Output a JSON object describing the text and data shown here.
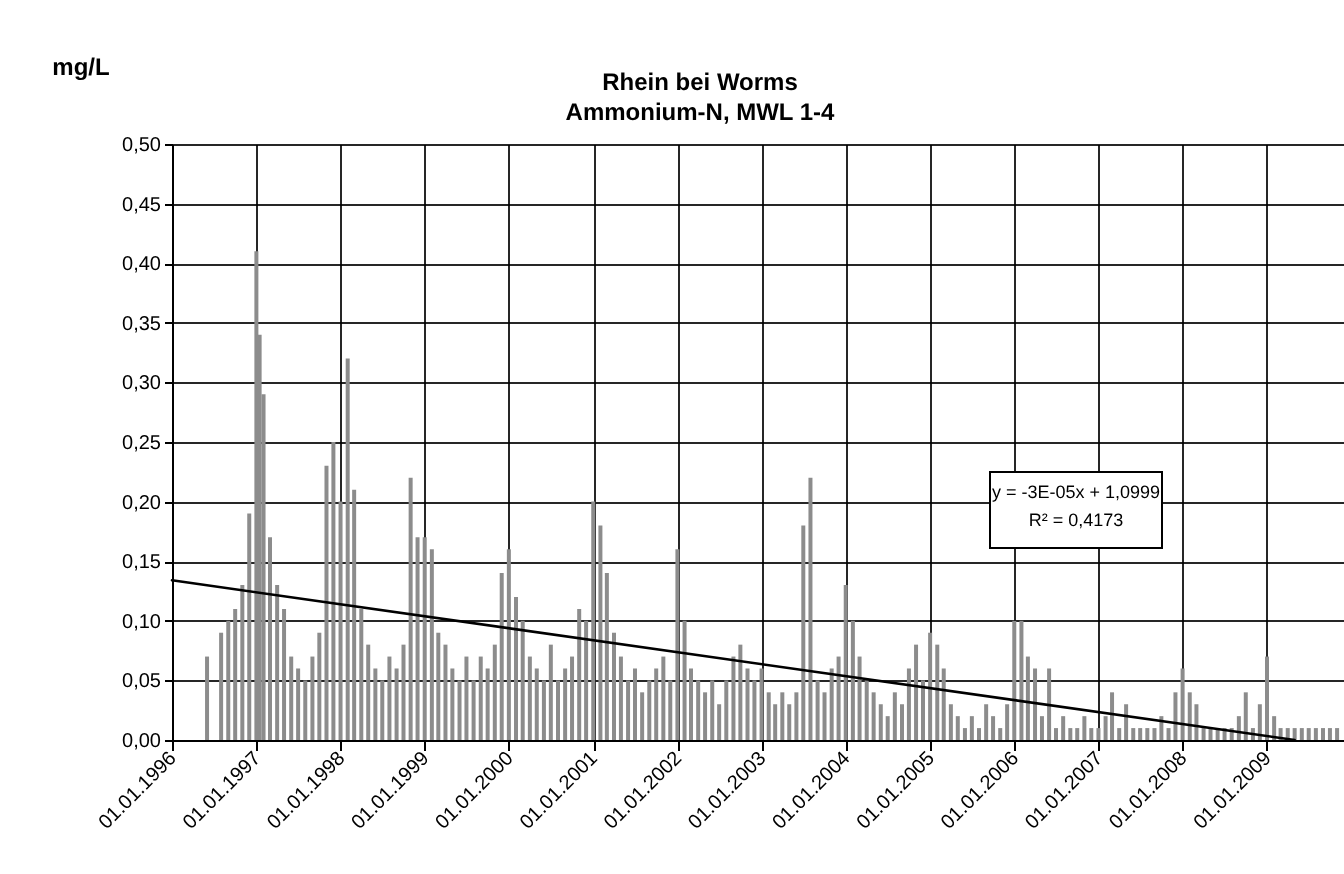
{
  "chart_data": {
    "type": "bar",
    "title": "Rhein bei Worms",
    "subtitle": "Ammonium-N, MWL 1-4",
    "ylabel": "mg/L",
    "annotations": [
      "y = -3E-05x + 1,0999",
      "R² = 0,4173"
    ],
    "xlim": [
      "1996-01-01",
      "2009-12-01"
    ],
    "xticks": [
      {
        "value": "1996-01-01",
        "label": "01.01.1996"
      },
      {
        "value": "1997-01-01",
        "label": "01.01.1997"
      },
      {
        "value": "1998-01-01",
        "label": "01.01.1998"
      },
      {
        "value": "1999-01-01",
        "label": "01.01.1999"
      },
      {
        "value": "2000-01-01",
        "label": "01.01.2000"
      },
      {
        "value": "2001-01-01",
        "label": "01.01.2001"
      },
      {
        "value": "2002-01-01",
        "label": "01.01.2002"
      },
      {
        "value": "2003-01-01",
        "label": "01.01.2003"
      },
      {
        "value": "2004-01-01",
        "label": "01.01.2004"
      },
      {
        "value": "2005-01-01",
        "label": "01.01.2005"
      },
      {
        "value": "2006-01-01",
        "label": "01.01.2006"
      },
      {
        "value": "2007-01-01",
        "label": "01.01.2007"
      },
      {
        "value": "2008-01-01",
        "label": "01.01.2008"
      },
      {
        "value": "2009-01-01",
        "label": "01.01.2009"
      }
    ],
    "ylim": [
      0,
      0.5
    ],
    "yticks": [
      {
        "value": 0,
        "label": "0,00"
      },
      {
        "value": 0.05,
        "label": "0,05"
      },
      {
        "value": 0.1,
        "label": "0,10"
      },
      {
        "value": 0.15,
        "label": "0,15"
      },
      {
        "value": 0.2,
        "label": "0,20"
      },
      {
        "value": 0.25,
        "label": "0,25"
      },
      {
        "value": 0.3,
        "label": "0,30"
      },
      {
        "value": 0.35,
        "label": "0,35"
      },
      {
        "value": 0.4,
        "label": "0,40"
      },
      {
        "value": 0.45,
        "label": "0,45"
      },
      {
        "value": 0.5,
        "label": "0,50"
      }
    ],
    "grid": true,
    "series": [
      {
        "color": "#8c8c8c",
        "x": [
          "1996-06",
          "1996-08",
          "1996-09",
          "1996-10",
          "1996-11",
          "1996-12",
          "1997-01",
          "1997-01-15",
          "1997-02",
          "1997-03",
          "1997-04",
          "1997-05",
          "1997-06",
          "1997-07",
          "1997-08",
          "1997-09",
          "1997-10",
          "1997-11",
          "1997-12",
          "1998-01",
          "1998-02",
          "1998-03",
          "1998-04",
          "1998-05",
          "1998-06",
          "1998-07",
          "1998-08",
          "1998-09",
          "1998-10",
          "1998-11",
          "1998-12",
          "1999-01",
          "1999-02",
          "1999-03",
          "1999-04",
          "1999-05",
          "1999-06",
          "1999-07",
          "1999-08",
          "1999-09",
          "1999-10",
          "1999-11",
          "1999-12",
          "2000-01",
          "2000-02",
          "2000-03",
          "2000-04",
          "2000-05",
          "2000-06",
          "2000-07",
          "2000-08",
          "2000-09",
          "2000-10",
          "2000-11",
          "2000-12",
          "2001-01",
          "2001-02",
          "2001-03",
          "2001-04",
          "2001-05",
          "2001-06",
          "2001-07",
          "2001-08",
          "2001-09",
          "2001-10",
          "2001-11",
          "2001-12",
          "2002-01",
          "2002-02",
          "2002-03",
          "2002-04",
          "2002-05",
          "2002-06",
          "2002-07",
          "2002-08",
          "2002-09",
          "2002-10",
          "2002-11",
          "2002-12",
          "2003-01",
          "2003-02",
          "2003-03",
          "2003-04",
          "2003-05",
          "2003-06",
          "2003-07",
          "2003-08",
          "2003-09",
          "2003-10",
          "2003-11",
          "2003-12",
          "2004-01",
          "2004-02",
          "2004-03",
          "2004-04",
          "2004-05",
          "2004-06",
          "2004-07",
          "2004-08",
          "2004-09",
          "2004-10",
          "2004-11",
          "2004-12",
          "2005-01",
          "2005-02",
          "2005-03",
          "2005-04",
          "2005-05",
          "2005-06",
          "2005-07",
          "2005-08",
          "2005-09",
          "2005-10",
          "2005-11",
          "2005-12",
          "2006-01",
          "2006-02",
          "2006-03",
          "2006-04",
          "2006-05",
          "2006-06",
          "2006-07",
          "2006-08",
          "2006-09",
          "2006-10",
          "2006-11",
          "2006-12",
          "2007-01",
          "2007-02",
          "2007-03",
          "2007-04",
          "2007-05",
          "2007-06",
          "2007-07",
          "2007-08",
          "2007-09",
          "2007-10",
          "2007-11",
          "2007-12",
          "2008-01",
          "2008-02",
          "2008-03",
          "2008-04",
          "2008-05",
          "2008-06",
          "2008-07",
          "2008-08",
          "2008-09",
          "2008-10",
          "2008-11",
          "2008-12",
          "2009-01",
          "2009-02",
          "2009-03",
          "2009-04",
          "2009-05",
          "2009-06",
          "2009-07",
          "2009-08",
          "2009-09",
          "2009-10",
          "2009-11"
        ],
        "values": [
          0.07,
          0.09,
          0.1,
          0.11,
          0.13,
          0.19,
          0.41,
          0.34,
          0.29,
          0.17,
          0.13,
          0.11,
          0.07,
          0.06,
          0.05,
          0.07,
          0.09,
          0.23,
          0.25,
          0.2,
          0.32,
          0.21,
          0.11,
          0.08,
          0.06,
          0.05,
          0.07,
          0.06,
          0.08,
          0.22,
          0.17,
          0.17,
          0.16,
          0.09,
          0.08,
          0.06,
          0.05,
          0.07,
          0.05,
          0.07,
          0.06,
          0.08,
          0.14,
          0.16,
          0.12,
          0.1,
          0.07,
          0.06,
          0.05,
          0.08,
          0.05,
          0.06,
          0.07,
          0.11,
          0.1,
          0.2,
          0.18,
          0.14,
          0.09,
          0.07,
          0.05,
          0.06,
          0.04,
          0.05,
          0.06,
          0.07,
          0.05,
          0.16,
          0.1,
          0.06,
          0.05,
          0.04,
          0.05,
          0.03,
          0.05,
          0.07,
          0.08,
          0.06,
          0.05,
          0.06,
          0.04,
          0.03,
          0.04,
          0.03,
          0.04,
          0.18,
          0.22,
          0.05,
          0.04,
          0.06,
          0.07,
          0.13,
          0.1,
          0.07,
          0.05,
          0.04,
          0.03,
          0.02,
          0.04,
          0.03,
          0.06,
          0.08,
          0.05,
          0.09,
          0.08,
          0.06,
          0.03,
          0.02,
          0.01,
          0.02,
          0.01,
          0.03,
          0.02,
          0.01,
          0.03,
          0.1,
          0.1,
          0.07,
          0.06,
          0.02,
          0.06,
          0.01,
          0.02,
          0.01,
          0.01,
          0.02,
          0.01,
          0.01,
          0.02,
          0.04,
          0.01,
          0.03,
          0.01,
          0.01,
          0.01,
          0.01,
          0.02,
          0.01,
          0.04,
          0.06,
          0.04,
          0.03,
          0.01,
          0.01,
          0.01,
          0.01,
          0.01,
          0.02,
          0.04,
          0.01,
          0.03,
          0.07,
          0.02,
          0.01,
          0.01,
          0.01,
          0.01,
          0.01,
          0.01,
          0.01,
          0.01,
          0.01
        ]
      },
      {
        "type": "line",
        "color": "#000000",
        "x": [
          "1996-01-01",
          "2009-05-01"
        ],
        "values": [
          0.134,
          0
        ]
      }
    ]
  }
}
